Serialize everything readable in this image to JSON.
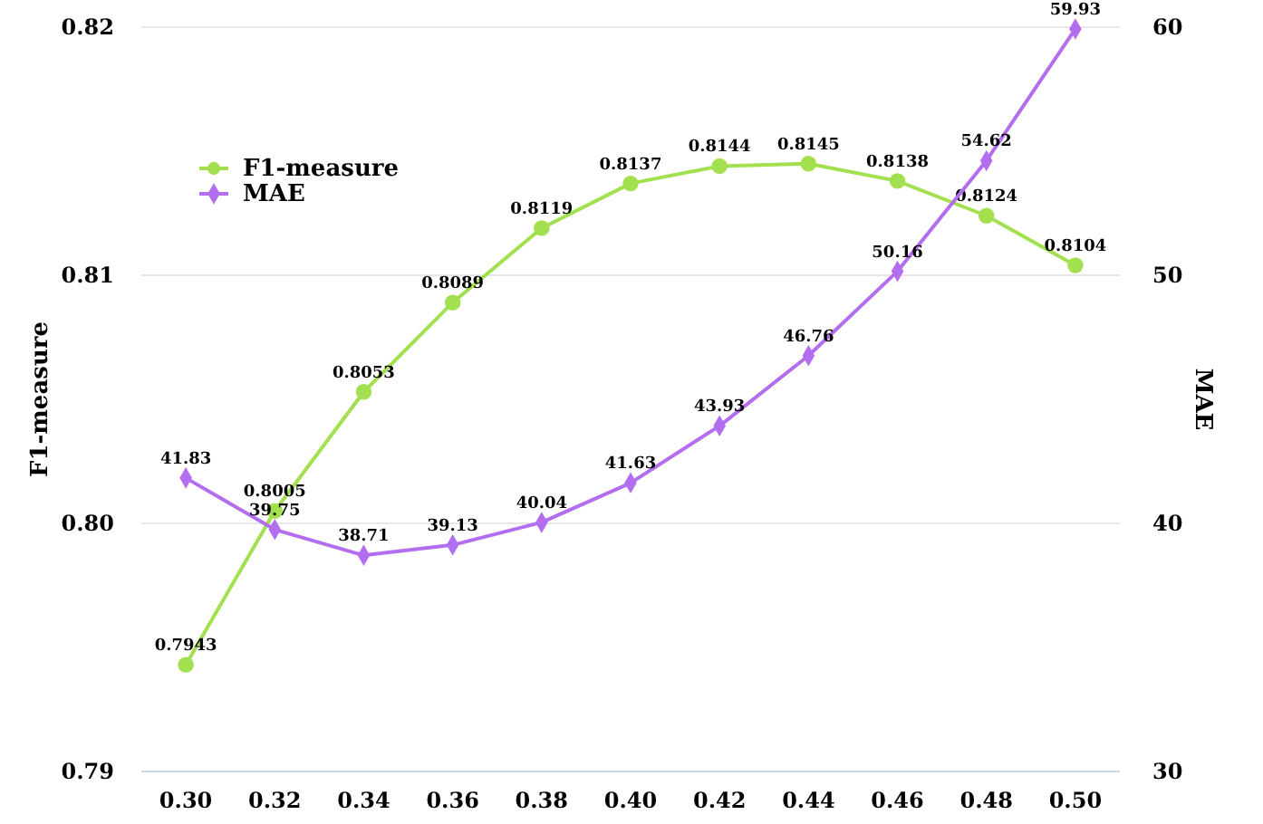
{
  "chart_data": {
    "type": "line",
    "xlabel": null,
    "ylabel": "F1-measure",
    "y2label": "MAE",
    "categories": [
      "0.30",
      "0.32",
      "0.34",
      "0.36",
      "0.38",
      "0.40",
      "0.42",
      "0.44",
      "0.46",
      "0.48",
      "0.50"
    ],
    "series": [
      {
        "name": "F1-measure",
        "color": "#a3e04f",
        "marker": "circle",
        "values": [
          0.7943,
          0.8005,
          0.8053,
          0.8089,
          0.8119,
          0.8137,
          0.8144,
          0.8145,
          0.8138,
          0.8124,
          0.8104
        ]
      },
      {
        "name": "MAE",
        "color": "#b36ef0",
        "marker": "diamond",
        "axis": "y2",
        "values": [
          41.83,
          39.75,
          38.71,
          39.13,
          40.04,
          41.63,
          43.93,
          46.76,
          50.16,
          54.62,
          59.93
        ]
      }
    ],
    "ylim": [
      0.79,
      0.82
    ],
    "yticks": [
      {
        "value": 0.79,
        "label": "0.79"
      },
      {
        "value": 0.8,
        "label": "0.80"
      },
      {
        "value": 0.81,
        "label": "0.81"
      },
      {
        "value": 0.82,
        "label": "0.82"
      }
    ],
    "y2lim": [
      30,
      60
    ],
    "y2ticks": [
      30,
      40,
      50,
      60
    ],
    "grid": "y",
    "legend": "top left",
    "data_labels": true,
    "line_style": "solid"
  }
}
